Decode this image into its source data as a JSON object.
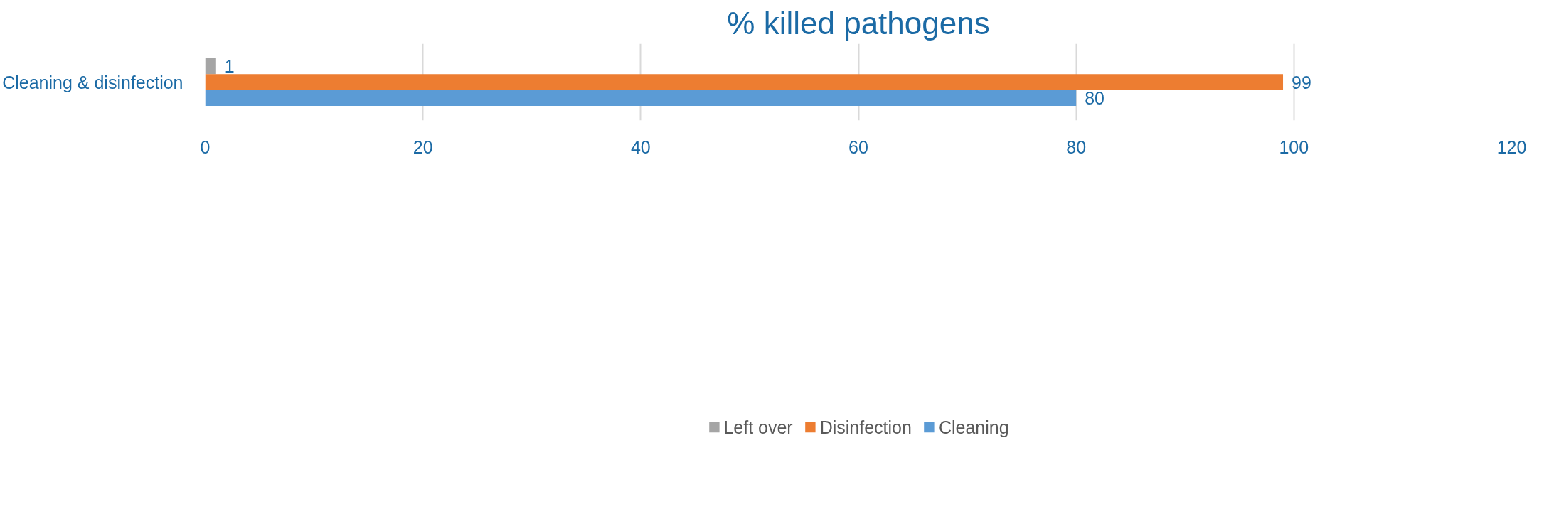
{
  "chart_data": {
    "type": "bar",
    "orientation": "horizontal",
    "title": "% killed pathogens",
    "categories": [
      "Cleaning & disinfection"
    ],
    "series": [
      {
        "name": "Left over",
        "color": "#a5a5a5",
        "values": [
          1
        ]
      },
      {
        "name": "Disinfection",
        "color": "#ed7d31",
        "values": [
          99
        ]
      },
      {
        "name": "Cleaning",
        "color": "#5b9bd5",
        "values": [
          80
        ]
      }
    ],
    "xlim": [
      0,
      120
    ],
    "xticks": [
      0,
      20,
      40,
      60,
      80,
      100,
      120
    ],
    "grid": "x",
    "legend": "bottom",
    "data_labels": true
  }
}
